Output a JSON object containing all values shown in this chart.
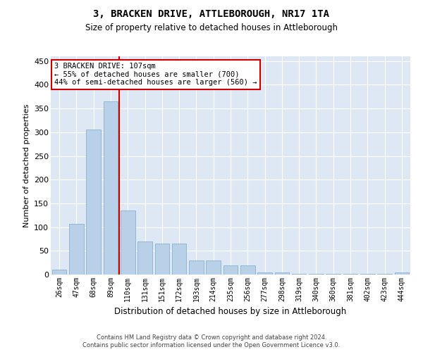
{
  "title": "3, BRACKEN DRIVE, ATTLEBOROUGH, NR17 1TA",
  "subtitle": "Size of property relative to detached houses in Attleborough",
  "xlabel": "Distribution of detached houses by size in Attleborough",
  "ylabel": "Number of detached properties",
  "categories": [
    "26sqm",
    "47sqm",
    "68sqm",
    "89sqm",
    "110sqm",
    "131sqm",
    "151sqm",
    "172sqm",
    "193sqm",
    "214sqm",
    "235sqm",
    "256sqm",
    "277sqm",
    "298sqm",
    "319sqm",
    "340sqm",
    "360sqm",
    "381sqm",
    "402sqm",
    "423sqm",
    "444sqm"
  ],
  "values": [
    10,
    107,
    305,
    365,
    135,
    70,
    65,
    65,
    30,
    30,
    20,
    20,
    5,
    5,
    2,
    2,
    2,
    2,
    2,
    2,
    5
  ],
  "bar_color": "#b8d0e8",
  "bar_edge_color": "#7aaac8",
  "vline_index": 3.5,
  "vline_color": "#cc0000",
  "annotation_lines": [
    "3 BRACKEN DRIVE: 107sqm",
    "← 55% of detached houses are smaller (700)",
    "44% of semi-detached houses are larger (560) →"
  ],
  "annotation_box_color": "#cc0000",
  "ylim": [
    0,
    460
  ],
  "yticks": [
    0,
    50,
    100,
    150,
    200,
    250,
    300,
    350,
    400,
    450
  ],
  "background_color": "#dde8f4",
  "footer1": "Contains HM Land Registry data © Crown copyright and database right 2024.",
  "footer2": "Contains public sector information licensed under the Open Government Licence v3.0."
}
